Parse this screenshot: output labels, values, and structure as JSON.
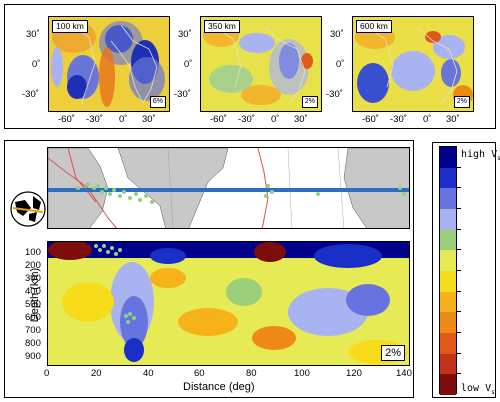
{
  "top_maps": [
    {
      "depth_label": "100 km",
      "scale_label": "6%"
    },
    {
      "depth_label": "350 km",
      "scale_label": "2%"
    },
    {
      "depth_label": "600 km",
      "scale_label": "2%"
    }
  ],
  "map_axes": {
    "y_ticks": [
      "30˚",
      "0˚",
      "-30˚"
    ],
    "x_ticks": [
      "-60˚",
      "-30˚",
      "0˚",
      "30˚"
    ]
  },
  "cross_section": {
    "scale_label": "2%",
    "ylabel": "Depth (km)",
    "xlabel": "Distance (deg)",
    "depth_ticks": [
      "100",
      "200",
      "300",
      "400",
      "500",
      "600",
      "700",
      "800",
      "900"
    ],
    "distance_ticks": [
      "0",
      "20",
      "40",
      "60",
      "80",
      "100",
      "120",
      "140"
    ]
  },
  "colorbar": {
    "high_label": "high V",
    "high_sub": "s",
    "low_label": "low V",
    "low_sub": "s",
    "colors": [
      "#00008b",
      "#1a2fc8",
      "#6673e0",
      "#a9b3f2",
      "#9bcf7a",
      "#e6ea55",
      "#f6dc1b",
      "#f7b21a",
      "#f08a16",
      "#e0591a",
      "#c2331a",
      "#7d0d0a"
    ]
  }
}
